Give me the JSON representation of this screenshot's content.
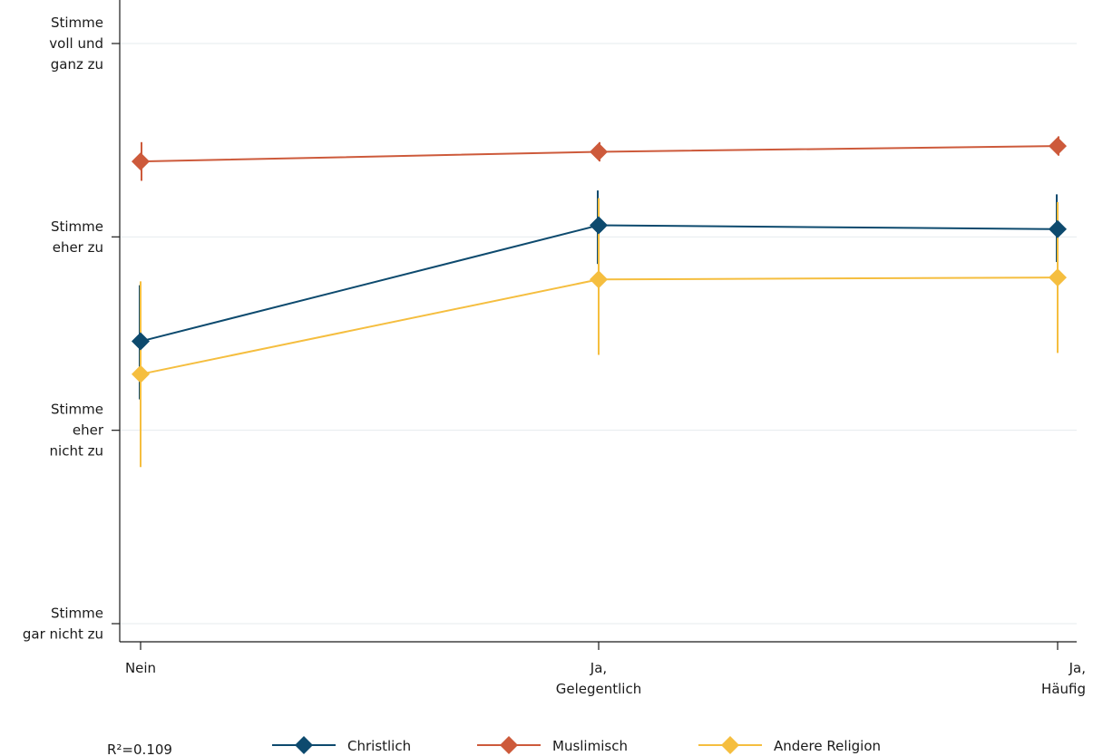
{
  "chart_data": {
    "type": "line",
    "categories": [
      "Nein",
      "Ja, Gelegentlich",
      "Ja, Häufig"
    ],
    "category_lines": [
      [
        "Nein"
      ],
      [
        "Ja,",
        "Gelegentlich"
      ],
      [
        "Ja,",
        "Häufig"
      ]
    ],
    "y_ticks": [
      {
        "value": 1,
        "lines": [
          "Stimme",
          "gar nicht zu"
        ]
      },
      {
        "value": 2,
        "lines": [
          "Stimme",
          "eher",
          "nicht zu"
        ]
      },
      {
        "value": 3,
        "lines": [
          "Stimme",
          "eher zu"
        ]
      },
      {
        "value": 4,
        "lines": [
          "Stimme",
          "voll und",
          "ganz zu"
        ]
      }
    ],
    "ylim": [
      0.9,
      4.2
    ],
    "grid": true,
    "legend_position": "bottom",
    "annotation": "R²=0.109",
    "series": [
      {
        "name": "Christlich",
        "color": "#0d4a6e",
        "values": [
          2.46,
          3.06,
          3.04
        ],
        "ci_low": [
          2.16,
          2.86,
          2.87
        ],
        "ci_high": [
          2.75,
          3.24,
          3.22
        ]
      },
      {
        "name": "Muslimisch",
        "color": "#cd5a3b",
        "values": [
          3.39,
          3.44,
          3.47
        ],
        "ci_low": [
          3.29,
          3.39,
          3.42
        ],
        "ci_high": [
          3.49,
          3.49,
          3.52
        ]
      },
      {
        "name": "Andere Religion",
        "color": "#f5be3f",
        "values": [
          2.29,
          2.78,
          2.79
        ],
        "ci_low": [
          1.81,
          2.39,
          2.4
        ],
        "ci_high": [
          2.77,
          3.2,
          3.18
        ]
      }
    ]
  }
}
